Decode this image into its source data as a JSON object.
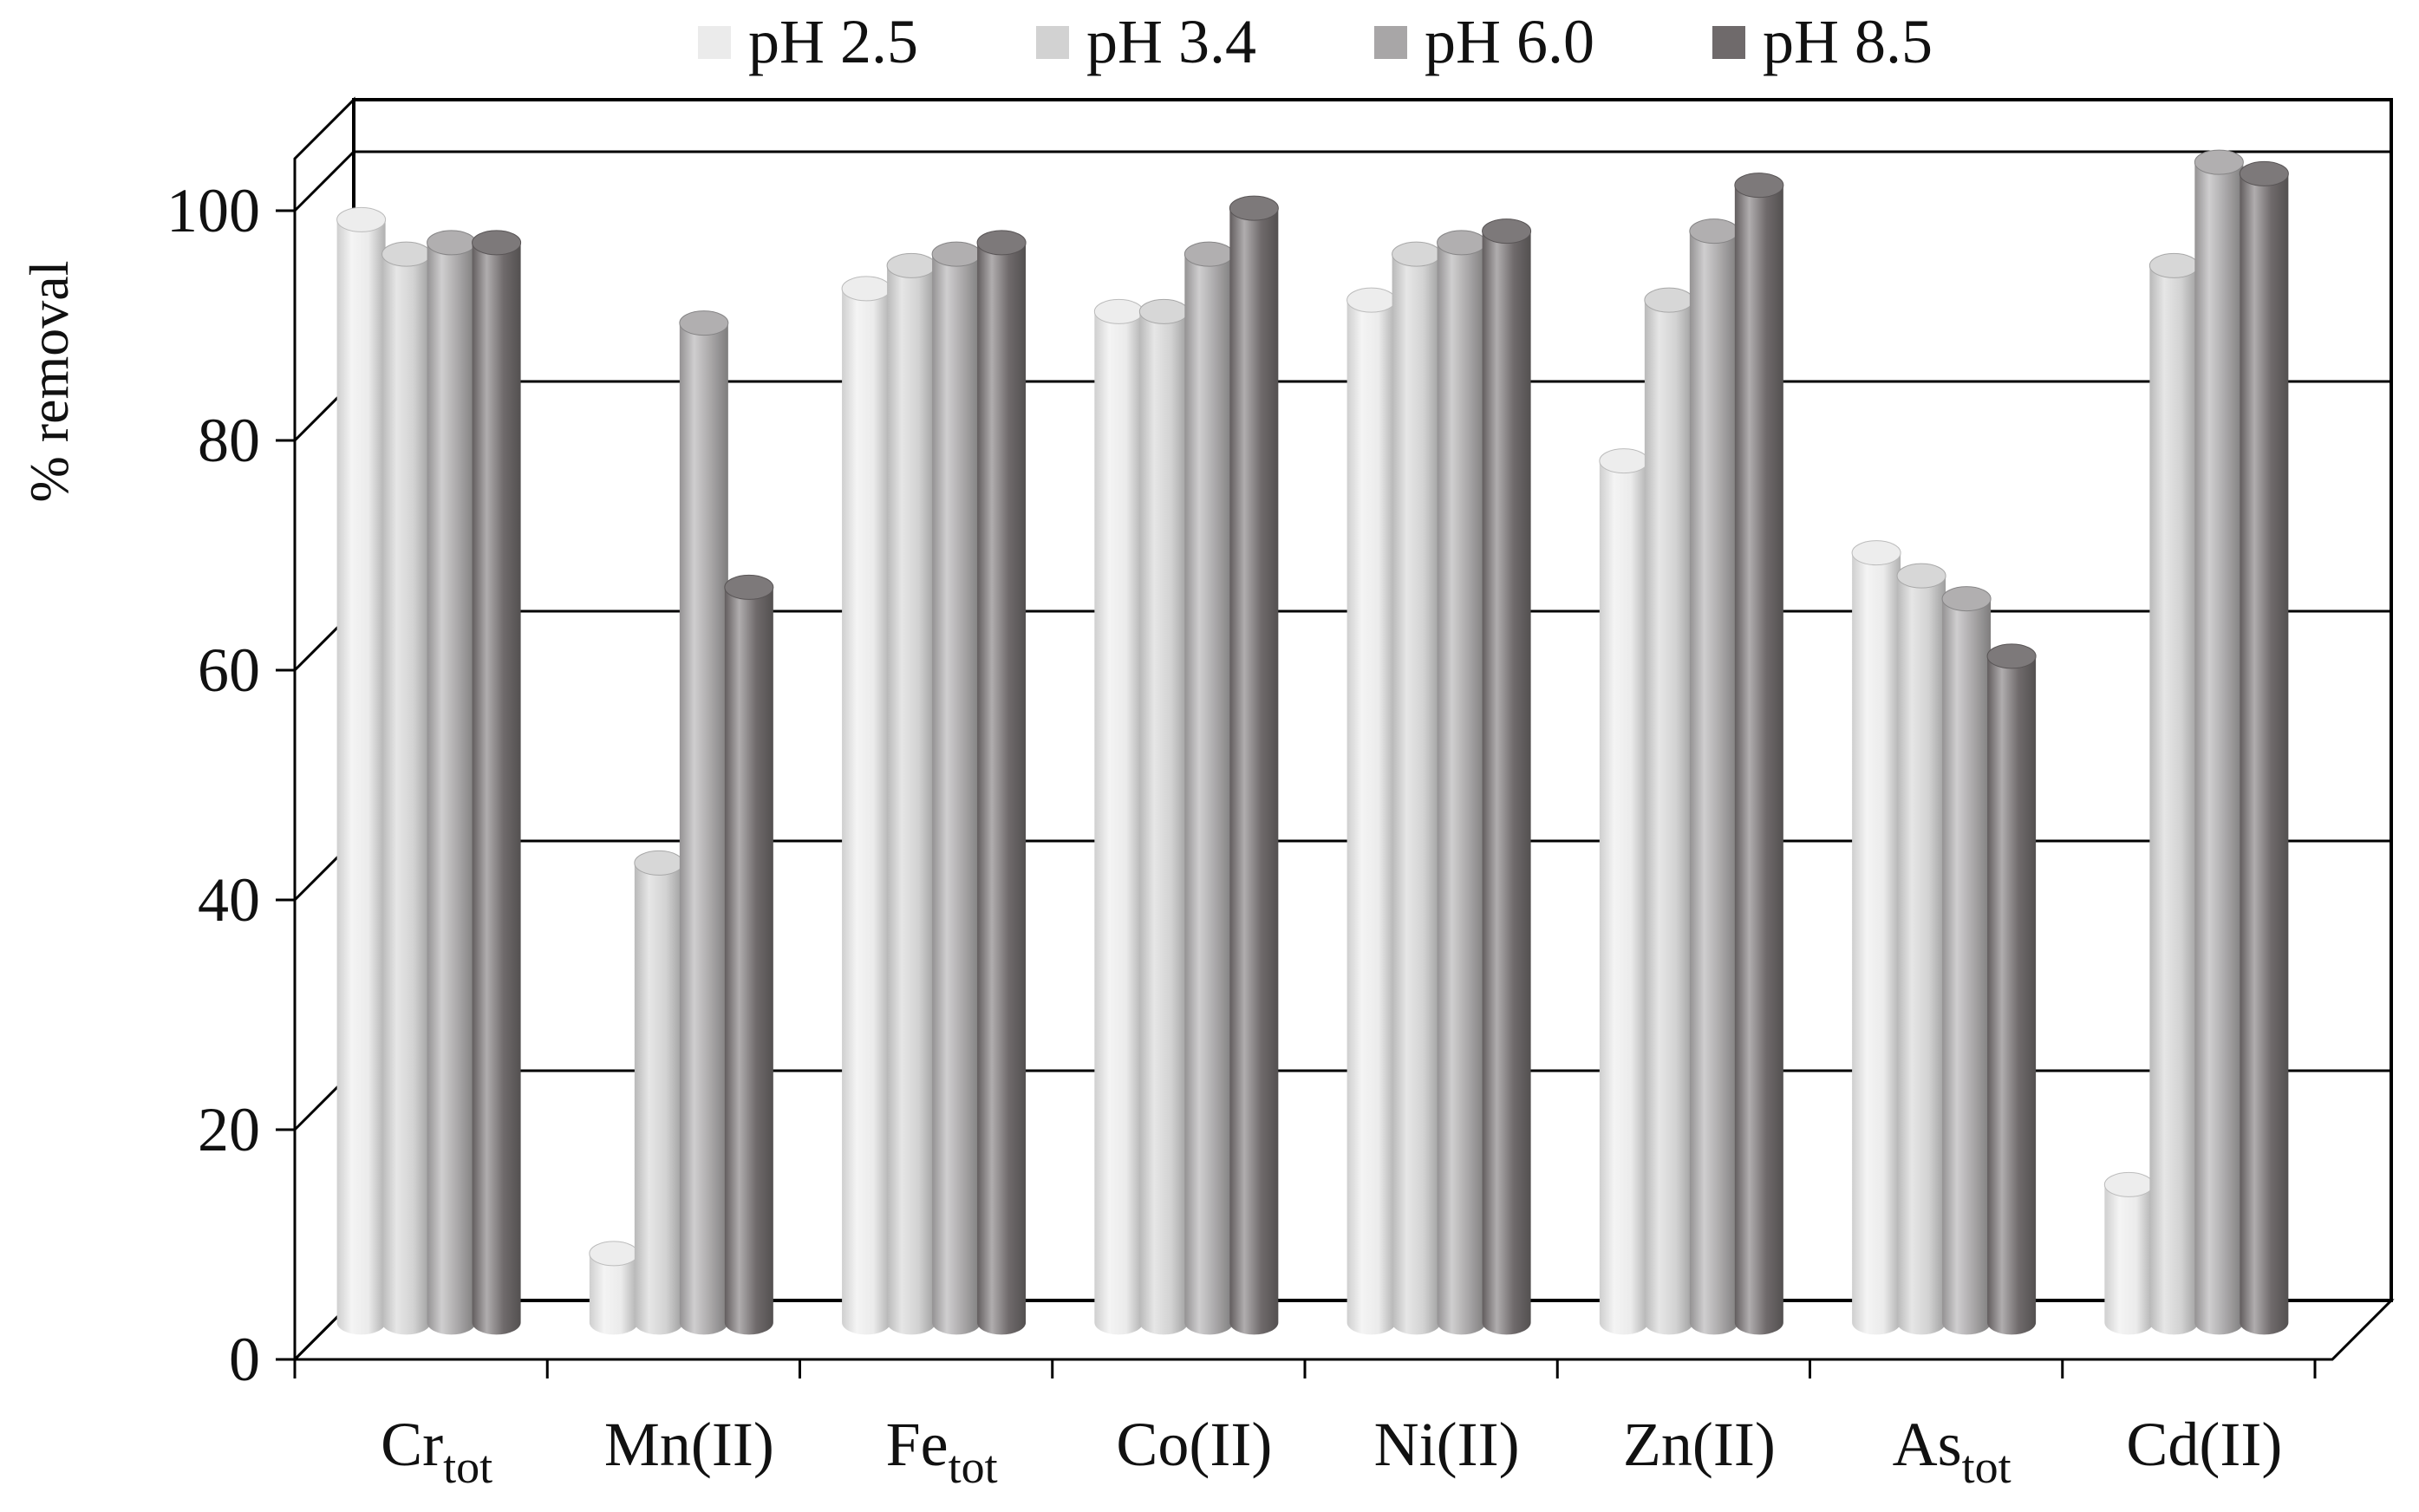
{
  "chart_data": {
    "type": "bar",
    "title": "",
    "xlabel": "",
    "ylabel": "% removal",
    "ylim": [
      0,
      100
    ],
    "yticks": [
      0,
      20,
      40,
      60,
      80,
      100
    ],
    "grid": true,
    "style": "3d-cylinder",
    "legend_position": "top",
    "categories": [
      {
        "main": "Cr",
        "sub": "tot"
      },
      {
        "main": "Mn(II)",
        "sub": ""
      },
      {
        "main": "Fe",
        "sub": "tot"
      },
      {
        "main": "Co(II)",
        "sub": ""
      },
      {
        "main": "Ni(II)",
        "sub": ""
      },
      {
        "main": "Zn(II)",
        "sub": ""
      },
      {
        "main": "As",
        "sub": "tot"
      },
      {
        "main": "Cd(II)",
        "sub": ""
      }
    ],
    "series": [
      {
        "name": "pH 2.5",
        "color": "#ebebeb",
        "values": [
          96,
          6,
          90,
          88,
          89,
          75,
          67,
          12
        ]
      },
      {
        "name": "pH 3.4",
        "color": "#d2d2d2",
        "values": [
          93,
          40,
          92,
          88,
          93,
          89,
          65,
          92
        ]
      },
      {
        "name": "pH 6.0",
        "color": "#a8a6a7",
        "values": [
          94,
          87,
          93,
          93,
          94,
          95,
          63,
          101
        ]
      },
      {
        "name": "pH 8.5",
        "color": "#6f6a6b",
        "values": [
          94,
          64,
          94,
          97,
          95,
          99,
          58,
          100
        ]
      }
    ]
  }
}
